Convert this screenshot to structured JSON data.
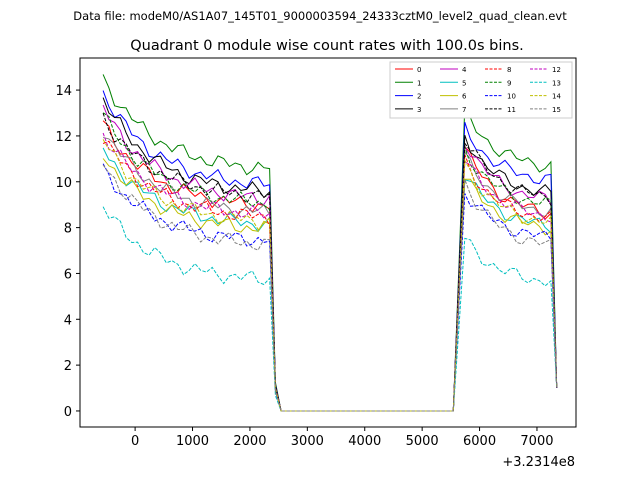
{
  "chart_data": {
    "type": "line",
    "suptitle": "Data file: modeM0/AS1A07_145T01_9000003594_24333cztM0_level2_quad_clean.evt",
    "title": "Quadrant 0 module wise count rates with 100.0s bins.",
    "xlabel": "",
    "ylabel": "",
    "x_offset_label": "+3.2314e8",
    "xlim": [
      -960,
      7680
    ],
    "ylim": [
      -0.7,
      15.4
    ],
    "xticks": [
      0,
      1000,
      2000,
      3000,
      4000,
      5000,
      6000,
      7000
    ],
    "yticks": [
      0,
      2,
      4,
      6,
      8,
      10,
      12,
      14
    ],
    "legend_position": "top-right",
    "x": [
      -557,
      -457,
      -357,
      -257,
      -157,
      -57,
      43,
      143,
      243,
      343,
      443,
      543,
      643,
      743,
      843,
      943,
      1043,
      1143,
      1243,
      1343,
      1443,
      1543,
      1643,
      1743,
      1843,
      1943,
      2043,
      2143,
      2243,
      2343,
      2443,
      2543,
      2643,
      2743,
      2843,
      2943,
      3043,
      3143,
      3243,
      3343,
      3443,
      3543,
      3643,
      3743,
      3843,
      3943,
      4043,
      4143,
      4243,
      4343,
      4443,
      4543,
      4643,
      4743,
      4843,
      4943,
      5043,
      5143,
      5243,
      5343,
      5443,
      5543,
      5643,
      5743,
      5843,
      5943,
      6043,
      6143,
      6243,
      6343,
      6443,
      6543,
      6643,
      6743,
      6843,
      6943,
      7043,
      7143,
      7243,
      7343
    ],
    "series": [
      {
        "name": "0",
        "color": "#ff0000",
        "dash": "solid",
        "start": 12.5,
        "plateau": 8.8,
        "peak": 11.5,
        "end": 8.4
      },
      {
        "name": "1",
        "color": "#008000",
        "dash": "solid",
        "start": 14.5,
        "plateau": 10.4,
        "peak": 13.0,
        "end": 10.5
      },
      {
        "name": "2",
        "color": "#0000ff",
        "dash": "solid",
        "start": 13.9,
        "plateau": 9.7,
        "peak": 12.3,
        "end": 9.9
      },
      {
        "name": "3",
        "color": "#000000",
        "dash": "solid",
        "start": 13.6,
        "plateau": 9.4,
        "peak": 12.0,
        "end": 9.3
      },
      {
        "name": "4",
        "color": "#bf00bf",
        "dash": "solid",
        "start": 13.2,
        "plateau": 9.1,
        "peak": 11.8,
        "end": 9.0
      },
      {
        "name": "5",
        "color": "#00bfbf",
        "dash": "solid",
        "start": 11.4,
        "plateau": 8.0,
        "peak": 10.4,
        "end": 7.9
      },
      {
        "name": "6",
        "color": "#bfbf00",
        "dash": "solid",
        "start": 11.2,
        "plateau": 7.8,
        "peak": 10.2,
        "end": 7.8
      },
      {
        "name": "7",
        "color": "#808080",
        "dash": "solid",
        "start": 12.3,
        "plateau": 8.5,
        "peak": 11.1,
        "end": 8.5
      },
      {
        "name": "8",
        "color": "#ff0000",
        "dash": "dashed",
        "start": 11.9,
        "plateau": 8.3,
        "peak": 10.9,
        "end": 8.2
      },
      {
        "name": "9",
        "color": "#008000",
        "dash": "dashed",
        "start": 12.9,
        "plateau": 8.9,
        "peak": 11.4,
        "end": 8.8
      },
      {
        "name": "10",
        "color": "#0000ff",
        "dash": "dashed",
        "start": 10.5,
        "plateau": 7.3,
        "peak": 9.6,
        "end": 7.4
      },
      {
        "name": "11",
        "color": "#000000",
        "dash": "dashed",
        "start": 12.8,
        "plateau": 9.2,
        "peak": 11.9,
        "end": 9.1
      },
      {
        "name": "12",
        "color": "#bf00bf",
        "dash": "dashed",
        "start": 12.1,
        "plateau": 8.4,
        "peak": 11.0,
        "end": 8.3
      },
      {
        "name": "13",
        "color": "#00bfbf",
        "dash": "dashed",
        "start": 8.9,
        "plateau": 5.6,
        "peak": 7.5,
        "end": 5.5
      },
      {
        "name": "14",
        "color": "#bfbf00",
        "dash": "dashed",
        "start": 11.8,
        "plateau": 8.1,
        "peak": 10.8,
        "end": 8.0
      },
      {
        "name": "15",
        "color": "#808080",
        "dash": "dashed",
        "start": 10.8,
        "plateau": 7.1,
        "peak": 10.0,
        "end": 7.0
      }
    ]
  }
}
